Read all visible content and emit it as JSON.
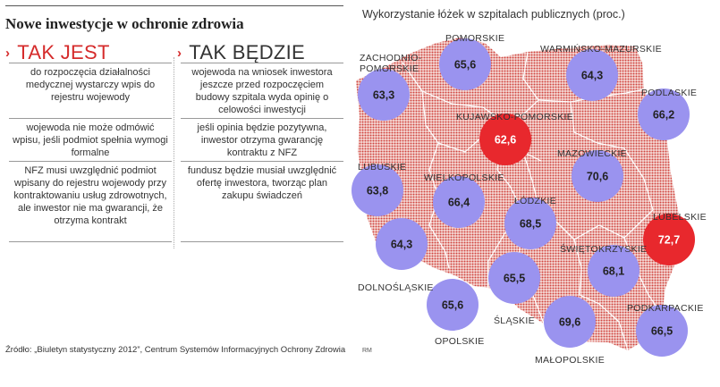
{
  "headline": "Nowe inwestycje w ochronie zdrowia",
  "left_column": {
    "title": "TAK JEST",
    "rows": [
      "do rozpoczęcia działalności medycznej wystarczy wpis do rejestru wojewody",
      "wojewoda nie może odmówić wpisu, jeśli podmiot spełnia wymogi formalne",
      "NFZ musi uwzględnić podmiot wpisany do rejestru wojewody przy kontraktowaniu usług zdrowotnych, ale inwestor nie ma gwarancji, że otrzyma kontrakt"
    ]
  },
  "right_column": {
    "title": "TAK BĘDZIE",
    "rows": [
      "wojewoda na wniosek inwestora jeszcze przed rozpoczęciem budowy szpitala wyda opinię o celowości inwestycji",
      "jeśli opinia będzie pozytywna, inwestor otrzyma gwarancję kontraktu z NFZ",
      "fundusz będzie musiał uwzględnić ofertę inwestora, tworząc plan zakupu świadczeń"
    ]
  },
  "source": "Źródło: „Biuletyn statystyczny 2012”, Centrum Systemów Informacyjnych Ochrony Zdrowia",
  "credit": "RM",
  "colors": {
    "accent_red": "#d52b2b",
    "bubble_normal": "#9a93ef",
    "bubble_high": "#e8282d",
    "map_dots": "#d0453f"
  },
  "chart_data": {
    "type": "bubble-map",
    "title": "Wykorzystanie łóżek w szpitalach publicznych (proc.)",
    "unit": "proc.",
    "regions": [
      {
        "name": "POMORSKIE",
        "value": "65,6",
        "high": false
      },
      {
        "name": "ZACHODNIO-POMORSKIE",
        "label_lines": [
          "ZACHODNIO-",
          "POMORSKIE"
        ],
        "value": "63,3",
        "high": false
      },
      {
        "name": "WARMIŃSKO-MAZURSKIE",
        "value": "64,3",
        "high": false
      },
      {
        "name": "PODLASKIE",
        "value": "66,2",
        "high": false
      },
      {
        "name": "KUJAWSKO-POMORSKIE",
        "value": "62,6",
        "high": true
      },
      {
        "name": "MAZOWIECKIE",
        "value": "70,6",
        "high": false
      },
      {
        "name": "LUBUSKIE",
        "value": "63,8",
        "high": false
      },
      {
        "name": "WIELKOPOLSKIE",
        "value": "66,4",
        "high": false
      },
      {
        "name": "ŁÓDZKIE",
        "value": "68,5",
        "high": false
      },
      {
        "name": "LUBELSKIE",
        "value": "72,7",
        "high": true
      },
      {
        "name": "DOLNOŚLĄSKIE",
        "value": "64,3",
        "high": false
      },
      {
        "name": "ŚWIĘTOKRZYSKIE",
        "value": "68,1",
        "high": false
      },
      {
        "name": "ŚLĄSKIE",
        "value": "65,5",
        "high": false
      },
      {
        "name": "OPOLSKIE",
        "value": "65,6",
        "high": false
      },
      {
        "name": "PODKARPACKIE",
        "value": "66,5",
        "high": false
      },
      {
        "name": "MAŁOPOLSKIE",
        "value": "69,6",
        "high": false
      }
    ]
  }
}
